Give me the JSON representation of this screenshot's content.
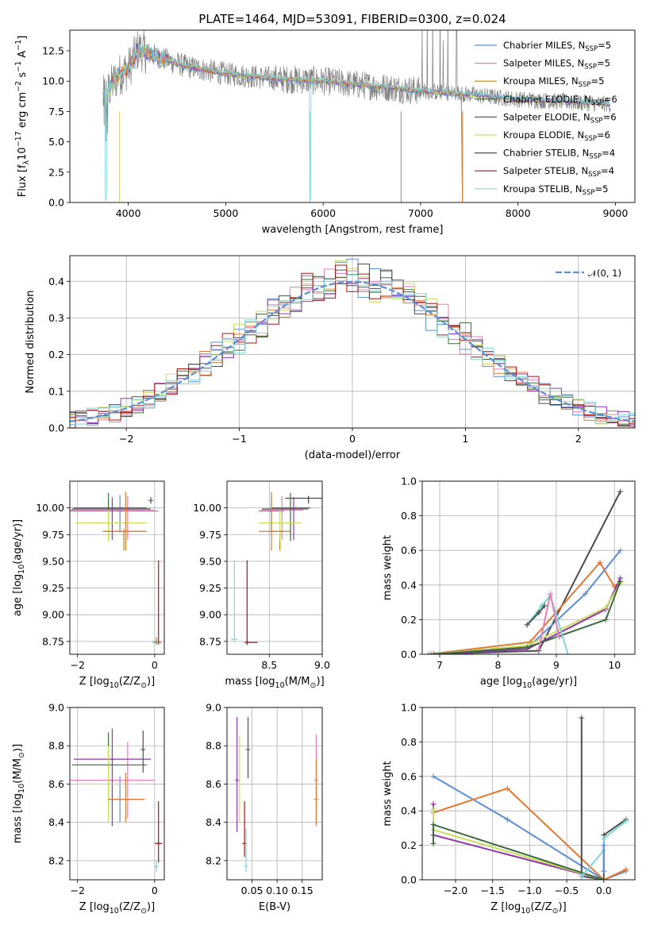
{
  "colors": {
    "Chabrier MILES": "#5b8ed6",
    "Salpeter MILES": "#e87cbb",
    "Kroupa MILES": "#b8860b",
    "Chabrier ELODIE": "#3d6b3d",
    "Salpeter ELODIE": "#8e35b0",
    "Kroupa ELODIE": "#c9dd5b",
    "Chabrier STELIB": "#4d4d4d",
    "Salpeter STELIB": "#a51515",
    "Kroupa STELIB": "#7ad9d4",
    "orange": "#e07830",
    "gauss": "#5b8ed6"
  },
  "chart_data": [
    {
      "id": "spectrum",
      "type": "line",
      "title": "PLATE=1464, MJD=53091, FIBERID=0300, z=0.024",
      "xlabel": "wavelength [Angstrom, rest frame]",
      "ylabel": "Flux [f$_\\lambda$10$^{-17}$ erg cm$^{-2}$ s$^{-1}$ A$^{-1}$]",
      "xlim": [
        3400,
        9200
      ],
      "ylim": [
        0,
        14.2
      ],
      "xticks": [
        "4000",
        "5000",
        "6000",
        "7000",
        "8000",
        "9000"
      ],
      "yticks": [
        "0.0",
        "2.5",
        "5.0",
        "7.5",
        "10.0",
        "12.5"
      ],
      "legend": [
        {
          "label": "Chabrier MILES",
          "nssp": "5"
        },
        {
          "label": "Salpeter MILES",
          "nssp": "5"
        },
        {
          "label": "Kroupa MILES",
          "nssp": "5"
        },
        {
          "label": "Chabrier ELODIE",
          "nssp": "6"
        },
        {
          "label": "Salpeter ELODIE",
          "nssp": "6"
        },
        {
          "label": "Kroupa ELODIE",
          "nssp": "6"
        },
        {
          "label": "Chabrier STELIB",
          "nssp": "4"
        },
        {
          "label": "Salpeter STELIB",
          "nssp": "4"
        },
        {
          "label": "Kroupa STELIB",
          "nssp": "5"
        }
      ],
      "continuum": [
        [
          3740,
          8.6
        ],
        [
          3900,
          10.5
        ],
        [
          4000,
          11.0
        ],
        [
          4100,
          12.6
        ],
        [
          4300,
          12.0
        ],
        [
          4600,
          11.2
        ],
        [
          5000,
          10.6
        ],
        [
          5500,
          10.2
        ],
        [
          6000,
          10.0
        ],
        [
          6500,
          9.6
        ],
        [
          7000,
          9.2
        ],
        [
          7500,
          8.9
        ],
        [
          8000,
          8.5
        ],
        [
          8500,
          8.3
        ],
        [
          8900,
          8.1
        ]
      ]
    },
    {
      "id": "residuals",
      "type": "line",
      "xlabel": "(data-model)/error",
      "ylabel": "Normed distribution",
      "xlim": [
        -2.5,
        2.5
      ],
      "ylim": [
        0,
        0.47
      ],
      "xticks": [
        "−2",
        "−1",
        "0",
        "1",
        "2"
      ],
      "yticks": [
        "0.0",
        "0.1",
        "0.2",
        "0.3",
        "0.4"
      ],
      "legend": "𝒩(0, 1)"
    },
    {
      "id": "age_vs_Z",
      "type": "errorbar",
      "xlabel": "Z [log$_{10}$(Z/Z$_\\odot$)]",
      "ylabel": "age  [log$_{10}$(age/yr)]",
      "xlim": [
        -2.2,
        0.25
      ],
      "ylim": [
        8.63,
        10.25
      ],
      "xticks": [
        "−2",
        "0"
      ],
      "yticks": [
        "8.75",
        "9.00",
        "9.25",
        "9.50",
        "9.75",
        "10.00"
      ],
      "points": [
        {
          "m": "Chabrier MILES",
          "x": -0.9,
          "y": 9.97,
          "xe": [
            1.3,
            1.0
          ],
          "ye": [
            0.2,
            0.15
          ]
        },
        {
          "m": "Salpeter MILES",
          "x": -0.7,
          "y": 9.98,
          "xe": [
            1.6,
            0.7
          ],
          "ye": [
            0.28,
            0.13
          ]
        },
        {
          "m": "Kroupa MILES",
          "x": -0.8,
          "y": 9.78,
          "xe": [
            0.55,
            0.55
          ],
          "ye": [
            0.18,
            0.0
          ]
        },
        {
          "m": "Chabrier ELODIE",
          "x": -1.2,
          "y": 9.99,
          "xe": [
            0.95,
            1.1
          ],
          "ye": [
            0.3,
            0.15
          ]
        },
        {
          "m": "Salpeter ELODIE",
          "x": -1.1,
          "y": 10.0,
          "xe": [
            1.0,
            0.9
          ],
          "ye": [
            0.3,
            0.1
          ]
        },
        {
          "m": "Kroupa ELODIE",
          "x": -1.2,
          "y": 9.86,
          "xe": [
            0.85,
            1.0
          ],
          "ye": [
            0.17,
            0.12
          ]
        },
        {
          "m": "Chabrier STELIB",
          "x": -0.1,
          "y": 10.07,
          "xe": [
            0.0,
            0.0
          ],
          "ye": [
            0.03,
            0.03
          ]
        },
        {
          "m": "Salpeter STELIB",
          "x": 0.1,
          "y": 8.74,
          "xe": [
            0.09,
            0.06
          ],
          "ye": [
            0.0,
            0.77
          ]
        },
        {
          "m": "Kroupa STELIB",
          "x": 0.0,
          "y": 8.75,
          "xe": [
            0.07,
            0.07
          ],
          "ye": [
            0.02,
            0.02
          ]
        },
        {
          "m": "orange",
          "x": -0.75,
          "y": 9.78,
          "xe": [
            0.55,
            0.55
          ],
          "ye": [
            0.18,
            0.37
          ]
        },
        {
          "m": "orange",
          "x": 0.05,
          "y": 8.74,
          "xe": [
            0.1,
            0.1
          ],
          "ye": [
            0.0,
            0.05
          ]
        }
      ]
    },
    {
      "id": "age_vs_mass",
      "type": "errorbar",
      "xlabel": "mass [log$_{10}$(M/M$_\\odot$)]",
      "ylabel": "",
      "xlim": [
        8.1,
        9.0
      ],
      "ylim": [
        8.63,
        10.25
      ],
      "xticks": [
        "8.5",
        "9.0"
      ],
      "yticks": [
        "8.75",
        "9.00",
        "9.25",
        "9.50",
        "9.75",
        "10.00"
      ],
      "points": [
        {
          "m": "Chabrier MILES",
          "x": 8.52,
          "y": 9.97,
          "xe": [
            0.12,
            0.12
          ],
          "ye": [
            0.2,
            0.15
          ]
        },
        {
          "m": "Salpeter MILES",
          "x": 8.62,
          "y": 9.98,
          "xe": [
            0.2,
            0.2
          ],
          "ye": [
            0.28,
            0.13
          ]
        },
        {
          "m": "Kroupa MILES",
          "x": 8.6,
          "y": 9.78,
          "xe": [
            0.1,
            0.1
          ],
          "ye": [
            0.18,
            0.0
          ]
        },
        {
          "m": "Chabrier ELODIE",
          "x": 8.7,
          "y": 9.99,
          "xe": [
            0.27,
            0.17
          ],
          "ye": [
            0.3,
            0.15
          ]
        },
        {
          "m": "Salpeter ELODIE",
          "x": 8.73,
          "y": 10.0,
          "xe": [
            0.21,
            0.16
          ],
          "ye": [
            0.3,
            0.1
          ]
        },
        {
          "m": "Kroupa ELODIE",
          "x": 8.6,
          "y": 9.86,
          "xe": [
            0.2,
            0.2
          ],
          "ye": [
            0.17,
            0.12
          ]
        },
        {
          "m": "Chabrier STELIB",
          "x": 8.87,
          "y": 10.09,
          "xe": [
            0.22,
            0.2
          ],
          "ye": [
            0.05,
            0.02
          ]
        },
        {
          "m": "Salpeter STELIB",
          "x": 8.29,
          "y": 8.74,
          "xe": [
            0.0,
            0.0
          ],
          "ye": [
            0.0,
            0.77
          ]
        },
        {
          "m": "Kroupa STELIB",
          "x": 8.17,
          "y": 8.77,
          "xe": [
            0.03,
            0.03
          ],
          "ye": [
            0.0,
            0.74
          ]
        },
        {
          "m": "orange",
          "x": 8.52,
          "y": 9.78,
          "xe": [
            0.12,
            0.14
          ],
          "ye": [
            0.18,
            0.37
          ]
        },
        {
          "m": "Salpeter STELIB",
          "x": 8.29,
          "y": 8.74,
          "xe": [
            0.0,
            0.1
          ],
          "ye": [
            0.0,
            0.0
          ]
        }
      ]
    },
    {
      "id": "weight_vs_age",
      "type": "line",
      "xlabel": "age  [log$_{10}$(age/yr)]",
      "ylabel": "mass weight",
      "xlim": [
        6.7,
        10.35
      ],
      "ylim": [
        0,
        1.0
      ],
      "xticks": [
        "7",
        "8",
        "9",
        "10"
      ],
      "yticks": [
        "0.0",
        "0.2",
        "0.4",
        "0.6",
        "0.8",
        "1.0"
      ],
      "series": [
        {
          "m": "Chabrier STELIB",
          "x": [
            6.85,
            8.7,
            10.1
          ],
          "y": [
            0.0,
            0.02,
            0.94
          ]
        },
        {
          "m": "orange",
          "x": [
            6.8,
            8.55,
            9.75,
            10.0,
            10.1
          ],
          "y": [
            0.0,
            0.07,
            0.53,
            0.39,
            0.42
          ]
        },
        {
          "m": "Chabrier MILES",
          "x": [
            6.85,
            8.55,
            9.5,
            10.1
          ],
          "y": [
            0.0,
            0.05,
            0.35,
            0.6
          ]
        },
        {
          "m": "Salpeter ELODIE",
          "x": [
            6.9,
            8.5,
            9.85,
            10.1
          ],
          "y": [
            0.0,
            0.03,
            0.26,
            0.44
          ]
        },
        {
          "m": "Kroupa ELODIE",
          "x": [
            6.9,
            8.5,
            9.85,
            10.1
          ],
          "y": [
            0.0,
            0.05,
            0.27,
            0.41
          ]
        },
        {
          "m": "Chabrier ELODIE",
          "x": [
            6.9,
            8.5,
            9.85,
            10.1
          ],
          "y": [
            0.0,
            0.04,
            0.2,
            0.42
          ]
        },
        {
          "m": "Kroupa STELIB",
          "x": [
            8.5,
            8.75,
            8.9,
            9.2
          ],
          "y": [
            0.17,
            0.28,
            0.34,
            0.0
          ]
        },
        {
          "m": "Salpeter MILES",
          "x": [
            8.7,
            8.9,
            9.05
          ],
          "y": [
            0.03,
            0.35,
            0.1
          ]
        },
        {
          "m": "Chabrier STELIB",
          "x": [
            8.5,
            8.7,
            8.8
          ],
          "y": [
            0.17,
            0.24,
            0.28
          ]
        }
      ]
    },
    {
      "id": "mass_vs_Z",
      "type": "errorbar",
      "xlabel": "Z [log$_{10}$(Z/Z$_\\odot$)]",
      "ylabel": "mass [log$_{10}$(M/M$_\\odot$)]",
      "xlim": [
        -2.2,
        0.25
      ],
      "ylim": [
        8.1,
        9.0
      ],
      "xticks": [
        "−2",
        "0"
      ],
      "yticks": [
        "8.2",
        "8.4",
        "8.6",
        "8.8",
        "9.0"
      ],
      "points": [
        {
          "m": "Chabrier MILES",
          "x": -0.9,
          "y": 8.52,
          "xe": [
            0.3,
            0.6
          ],
          "ye": [
            0.12,
            0.12
          ]
        },
        {
          "m": "Salpeter MILES",
          "x": -0.7,
          "y": 8.62,
          "xe": [
            1.6,
            0.7
          ],
          "ye": [
            0.2,
            0.2
          ]
        },
        {
          "m": "Chabrier ELODIE",
          "x": -1.2,
          "y": 8.7,
          "xe": [
            0.95,
            1.0
          ],
          "ye": [
            0.27,
            0.17
          ]
        },
        {
          "m": "Salpeter ELODIE",
          "x": -1.1,
          "y": 8.73,
          "xe": [
            1.0,
            1.0
          ],
          "ye": [
            0.35,
            0.16
          ]
        },
        {
          "m": "Kroupa ELODIE",
          "x": -1.2,
          "y": 8.6,
          "xe": [
            0.85,
            1.0
          ],
          "ye": [
            0.2,
            0.2
          ]
        },
        {
          "m": "Chabrier STELIB",
          "x": -0.3,
          "y": 8.78,
          "xe": [
            0.0,
            0.0
          ],
          "ye": [
            0.12,
            0.1
          ]
        },
        {
          "m": "Salpeter STELIB",
          "x": 0.1,
          "y": 8.29,
          "xe": [
            0.1,
            0.1
          ],
          "ye": [
            0.1,
            0.22
          ]
        },
        {
          "m": "Kroupa STELIB",
          "x": 0.05,
          "y": 8.17,
          "xe": [
            0.05,
            0.05
          ],
          "ye": [
            0.03,
            0.03
          ]
        },
        {
          "m": "orange",
          "x": -0.75,
          "y": 8.52,
          "xe": [
            0.45,
            0.5
          ],
          "ye": [
            0.12,
            0.14
          ]
        }
      ]
    },
    {
      "id": "mass_vs_EBV",
      "type": "errorbar",
      "xlabel": "E(B-V)",
      "ylabel": "",
      "xlim": [
        0.0,
        0.19
      ],
      "ylim": [
        8.1,
        9.0
      ],
      "xticks": [
        "0.05",
        "0.10",
        "0.15"
      ],
      "xtickvals": [
        0.05,
        0.1,
        0.15
      ],
      "yticks": [
        "8.2",
        "8.4",
        "8.6",
        "8.8",
        "9.0"
      ],
      "extra_tick": {
        "x": 0.02
      },
      "points": [
        {
          "m": "Salpeter ELODIE",
          "x": 0.02,
          "y": 8.62,
          "xe": [
            0.0,
            0.0
          ],
          "ye": [
            0.27,
            0.33
          ]
        },
        {
          "m": "Kroupa ELODIE",
          "x": 0.025,
          "y": 8.6,
          "xe": [
            0.0,
            0.0
          ],
          "ye": [
            0.2,
            0.25
          ]
        },
        {
          "m": "Chabrier STELIB",
          "x": 0.042,
          "y": 8.78,
          "xe": [
            0.0,
            0.0
          ],
          "ye": [
            0.15,
            0.17
          ]
        },
        {
          "m": "Salpeter STELIB",
          "x": 0.035,
          "y": 8.29,
          "xe": [
            0.0,
            0.0
          ],
          "ye": [
            0.07,
            0.22
          ]
        },
        {
          "m": "Kroupa STELIB",
          "x": 0.038,
          "y": 8.17,
          "xe": [
            0.0,
            0.0
          ],
          "ye": [
            0.03,
            0.2
          ]
        },
        {
          "m": "Salpeter MILES",
          "x": 0.178,
          "y": 8.62,
          "xe": [
            0.0,
            0.0
          ],
          "ye": [
            0.24,
            0.24
          ]
        },
        {
          "m": "orange",
          "x": 0.178,
          "y": 8.52,
          "xe": [
            0.0,
            0.0
          ],
          "ye": [
            0.13,
            0.21
          ]
        }
      ]
    },
    {
      "id": "weight_vs_Z",
      "type": "line",
      "xlabel": "Z [log$_{10}$(Z/Z$_\\odot$)]",
      "ylabel": "mass weight",
      "xlim": [
        -2.45,
        0.42
      ],
      "ylim": [
        0,
        1.0
      ],
      "xticks": [
        "−2.0",
        "−1.5",
        "−1.0",
        "−0.5",
        "0.0"
      ],
      "xtickvals": [
        -2.0,
        -1.5,
        -1.0,
        -0.5,
        0.0
      ],
      "yticks": [
        "0.0",
        "0.2",
        "0.4",
        "0.6",
        "0.8",
        "1.0"
      ],
      "series": [
        {
          "m": "Chabrier MILES",
          "x": [
            -2.3,
            -1.3,
            0.0,
            0.3
          ],
          "y": [
            0.6,
            0.35,
            0.0,
            0.05
          ]
        },
        {
          "m": "orange",
          "x": [
            -2.3,
            -1.3,
            0.0,
            0.3
          ],
          "y": [
            0.39,
            0.53,
            0.0,
            0.06
          ]
        },
        {
          "m": "Chabrier STELIB",
          "x": [
            -0.3,
            -0.3,
            0.0,
            0.0,
            0.3
          ],
          "y": [
            0.94,
            0.02,
            0.0,
            0.26,
            0.35
          ]
        },
        {
          "m": "Salpeter ELODIE",
          "x": [
            -2.3,
            -2.3,
            0.0
          ],
          "y": [
            0.44,
            0.26,
            0.0
          ]
        },
        {
          "m": "Kroupa ELODIE",
          "x": [
            -2.3,
            -2.3,
            0.0
          ],
          "y": [
            0.41,
            0.29,
            0.0
          ]
        },
        {
          "m": "Chabrier ELODIE",
          "x": [
            -2.3,
            -2.3,
            0.0
          ],
          "y": [
            0.21,
            0.32,
            0.0
          ]
        },
        {
          "m": "Kroupa STELIB",
          "x": [
            -0.3,
            0.0,
            0.0,
            0.3
          ],
          "y": [
            0.02,
            0.17,
            0.24,
            0.34
          ]
        },
        {
          "m": "Chabrier MILES",
          "x": [
            0.0,
            0.0
          ],
          "y": [
            0.05,
            0.2
          ]
        }
      ]
    }
  ]
}
